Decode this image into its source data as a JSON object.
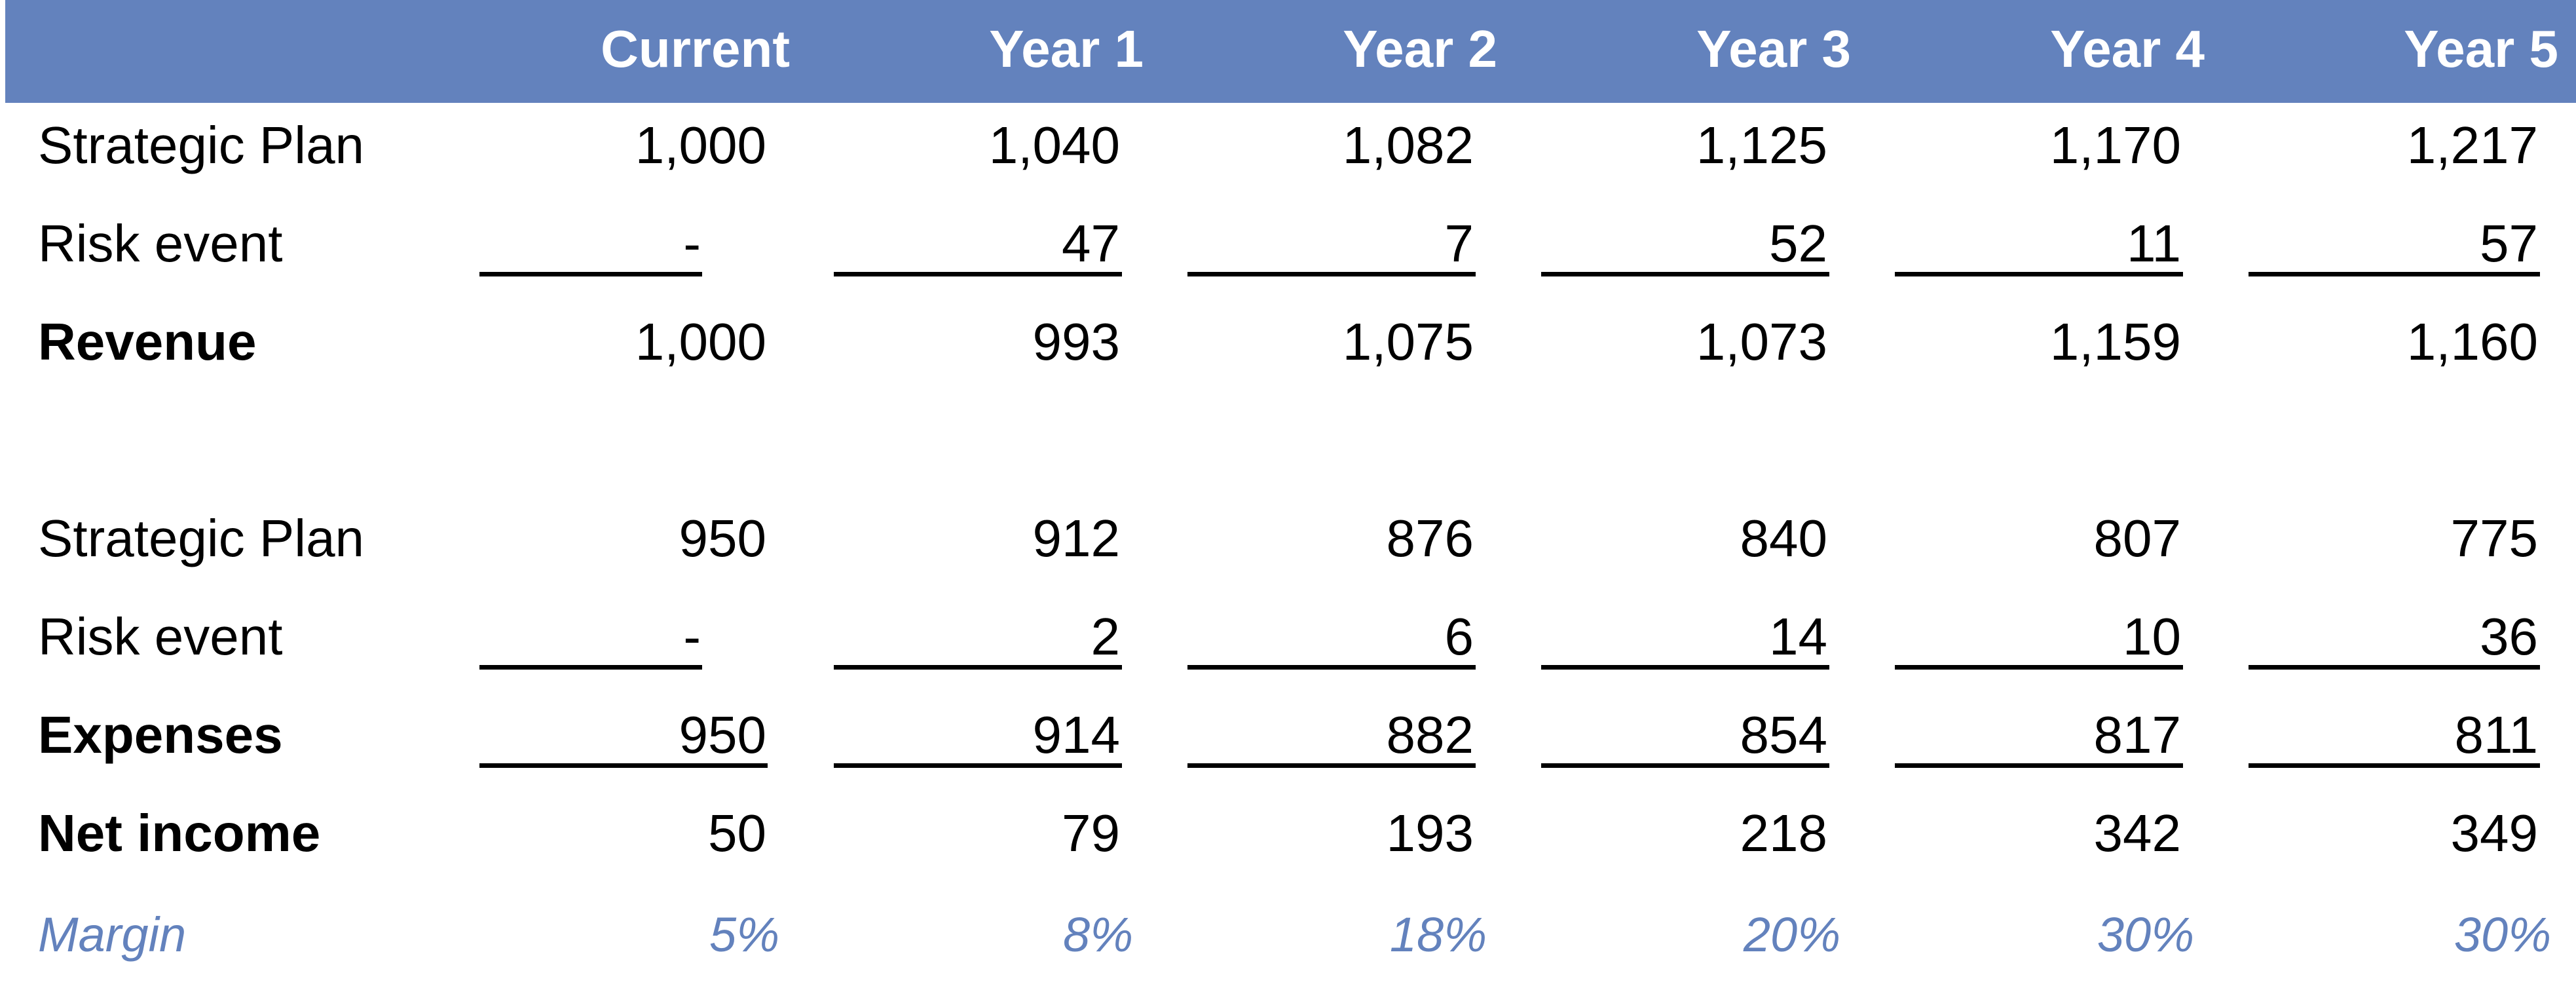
{
  "header": {
    "columns": [
      "Current",
      "Year 1",
      "Year 2",
      "Year 3",
      "Year 4",
      "Year 5"
    ]
  },
  "revenue_section": {
    "strategic_plan": {
      "label": "Strategic Plan",
      "values": [
        "1,000",
        "1,040",
        "1,082",
        "1,125",
        "1,170",
        "1,217"
      ]
    },
    "risk_event": {
      "label": "Risk event",
      "values": [
        "-",
        "47",
        "7",
        "52",
        "11",
        "57"
      ]
    },
    "total": {
      "label": "Revenue",
      "values": [
        "1,000",
        "993",
        "1,075",
        "1,073",
        "1,159",
        "1,160"
      ]
    }
  },
  "expense_section": {
    "strategic_plan": {
      "label": "Strategic Plan",
      "values": [
        "950",
        "912",
        "876",
        "840",
        "807",
        "775"
      ]
    },
    "risk_event": {
      "label": "Risk event",
      "values": [
        "-",
        "2",
        "6",
        "14",
        "10",
        "36"
      ]
    },
    "total": {
      "label": "Expenses",
      "values": [
        "950",
        "914",
        "882",
        "854",
        "817",
        "811"
      ]
    }
  },
  "net_income": {
    "label": "Net income",
    "values": [
      "50",
      "79",
      "193",
      "218",
      "342",
      "349"
    ]
  },
  "margin": {
    "label": "Margin",
    "values": [
      "5%",
      "8%",
      "18%",
      "20%",
      "30%",
      "30%"
    ]
  },
  "colors": {
    "header_bg": "#6382bd",
    "header_text": "#ffffff",
    "margin_text": "#6382bd"
  }
}
